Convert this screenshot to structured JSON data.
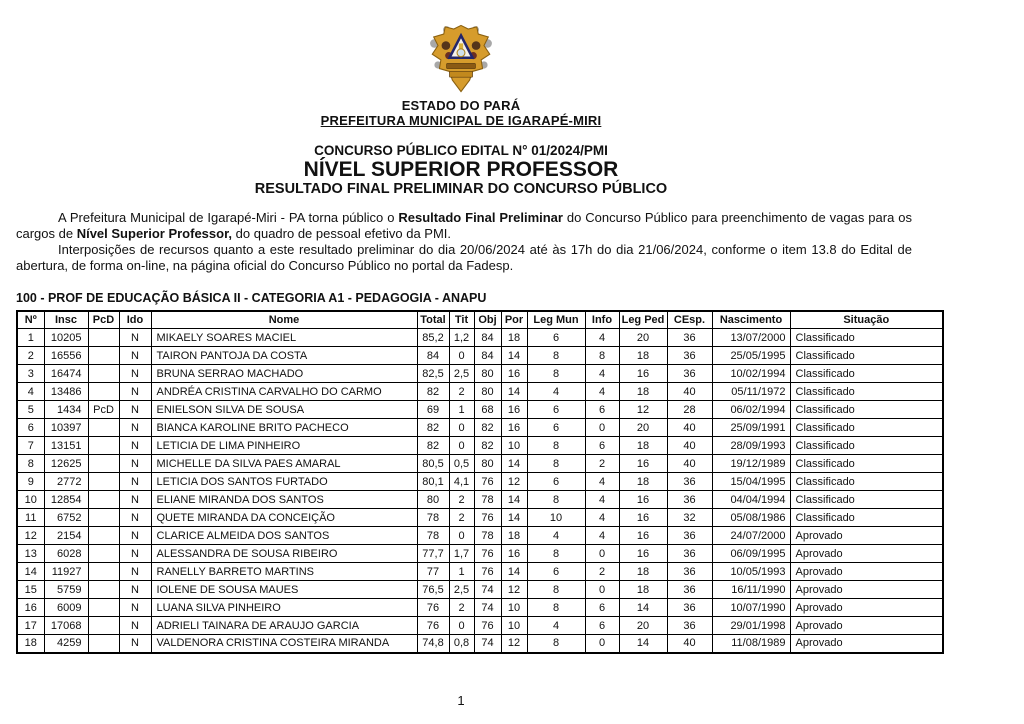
{
  "header": {
    "logo_name": "coat-of-arms-igarape-miri",
    "state": "ESTADO DO PARÁ",
    "municipality": "PREFEITURA MUNICIPAL DE IGARAPÉ-MIRI",
    "edital": "CONCURSO PÚBLICO EDITAL N° 01/2024/PMI",
    "title": "NÍVEL SUPERIOR PROFESSOR",
    "subtitle": "RESULTADO FINAL PRELIMINAR DO CONCURSO PÚBLICO"
  },
  "intro": {
    "p1": {
      "t1": "A Prefeitura Municipal de Igarapé-Miri - PA torna público o ",
      "b1": "Resultado Final Preliminar",
      "t2": " do Concurso Público para preenchimento de vagas para os cargos de ",
      "b2": "Nível Superior Professor,",
      "t3": " do quadro de pessoal efetivo da PMI."
    },
    "p2": "Interposições de recursos quanto a este resultado preliminar do dia 20/06/2024 até às 17h do dia 21/06/2024, conforme o item 13.8 do Edital de abertura, de forma on-line, na página oficial do Concurso Público no portal da Fadesp."
  },
  "section_title": "100 - PROF DE EDUCAÇÃO BÁSICA II - CATEGORIA A1 - PEDAGOGIA - ANAPU",
  "table": {
    "columns": [
      "Nº",
      "Insc",
      "PcD",
      "Ido",
      "Nome",
      "Total",
      "Tit",
      "Obj",
      "Por",
      "Leg Mun",
      "Info",
      "Leg Ped",
      "CEsp.",
      "Nascimento",
      "Situação"
    ],
    "rows": [
      [
        "1",
        "10205",
        "",
        "N",
        "MIKAELY SOARES MACIEL",
        "85,2",
        "1,2",
        "84",
        "18",
        "6",
        "4",
        "20",
        "36",
        "13/07/2000",
        "Classificado"
      ],
      [
        "2",
        "16556",
        "",
        "N",
        "TAIRON PANTOJA DA COSTA",
        "84",
        "0",
        "84",
        "14",
        "8",
        "8",
        "18",
        "36",
        "25/05/1995",
        "Classificado"
      ],
      [
        "3",
        "16474",
        "",
        "N",
        "BRUNA SERRAO MACHADO",
        "82,5",
        "2,5",
        "80",
        "16",
        "8",
        "4",
        "16",
        "36",
        "10/02/1994",
        "Classificado"
      ],
      [
        "4",
        "13486",
        "",
        "N",
        "ANDRÉA CRISTINA CARVALHO DO CARMO",
        "82",
        "2",
        "80",
        "14",
        "4",
        "4",
        "18",
        "40",
        "05/11/1972",
        "Classificado"
      ],
      [
        "5",
        "1434",
        "PcD",
        "N",
        "ENIELSON SILVA DE SOUSA",
        "69",
        "1",
        "68",
        "16",
        "6",
        "6",
        "12",
        "28",
        "06/02/1994",
        "Classificado"
      ],
      [
        "6",
        "10397",
        "",
        "N",
        "BIANCA KAROLINE BRITO PACHECO",
        "82",
        "0",
        "82",
        "16",
        "6",
        "0",
        "20",
        "40",
        "25/09/1991",
        "Classificado"
      ],
      [
        "7",
        "13151",
        "",
        "N",
        "LETICIA DE LIMA PINHEIRO",
        "82",
        "0",
        "82",
        "10",
        "8",
        "6",
        "18",
        "40",
        "28/09/1993",
        "Classificado"
      ],
      [
        "8",
        "12625",
        "",
        "N",
        "MICHELLE DA SILVA PAES AMARAL",
        "80,5",
        "0,5",
        "80",
        "14",
        "8",
        "2",
        "16",
        "40",
        "19/12/1989",
        "Classificado"
      ],
      [
        "9",
        "2772",
        "",
        "N",
        "LETICIA DOS SANTOS FURTADO",
        "80,1",
        "4,1",
        "76",
        "12",
        "6",
        "4",
        "18",
        "36",
        "15/04/1995",
        "Classificado"
      ],
      [
        "10",
        "12854",
        "",
        "N",
        "ELIANE MIRANDA DOS SANTOS",
        "80",
        "2",
        "78",
        "14",
        "8",
        "4",
        "16",
        "36",
        "04/04/1994",
        "Classificado"
      ],
      [
        "11",
        "6752",
        "",
        "N",
        "QUETE MIRANDA DA CONCEIÇÃO",
        "78",
        "2",
        "76",
        "14",
        "10",
        "4",
        "16",
        "32",
        "05/08/1986",
        "Classificado"
      ],
      [
        "12",
        "2154",
        "",
        "N",
        "CLARICE ALMEIDA DOS SANTOS",
        "78",
        "0",
        "78",
        "18",
        "4",
        "4",
        "16",
        "36",
        "24/07/2000",
        "Aprovado"
      ],
      [
        "13",
        "6028",
        "",
        "N",
        "ALESSANDRA DE SOUSA RIBEIRO",
        "77,7",
        "1,7",
        "76",
        "16",
        "8",
        "0",
        "16",
        "36",
        "06/09/1995",
        "Aprovado"
      ],
      [
        "14",
        "11927",
        "",
        "N",
        "RANELLY BARRETO MARTINS",
        "77",
        "1",
        "76",
        "14",
        "6",
        "2",
        "18",
        "36",
        "10/05/1993",
        "Aprovado"
      ],
      [
        "15",
        "5759",
        "",
        "N",
        "IOLENE DE SOUSA MAUES",
        "76,5",
        "2,5",
        "74",
        "12",
        "8",
        "0",
        "18",
        "36",
        "16/11/1990",
        "Aprovado"
      ],
      [
        "16",
        "6009",
        "",
        "N",
        "LUANA SILVA PINHEIRO",
        "76",
        "2",
        "74",
        "10",
        "8",
        "6",
        "14",
        "36",
        "10/07/1990",
        "Aprovado"
      ],
      [
        "17",
        "17068",
        "",
        "N",
        "ADRIELI TAINARA DE ARAUJO GARCIA",
        "76",
        "0",
        "76",
        "10",
        "4",
        "6",
        "20",
        "36",
        "29/01/1998",
        "Aprovado"
      ],
      [
        "18",
        "4259",
        "",
        "N",
        "VALDENORA CRISTINA COSTEIRA MIRANDA",
        "74,8",
        "0,8",
        "74",
        "12",
        "8",
        "0",
        "14",
        "40",
        "11/08/1989",
        "Aprovado"
      ]
    ]
  },
  "footer": {
    "page_number": "1"
  },
  "colors": {
    "shield_gold": "#d69c2c",
    "shield_outline": "#8a6010",
    "emblem_navy": "#23266b",
    "emblem_brown": "#55351a",
    "emblem_maroon": "#6b2f22",
    "knob_grey": "#a8a8a8",
    "text": "#111111",
    "border": "#000000"
  }
}
